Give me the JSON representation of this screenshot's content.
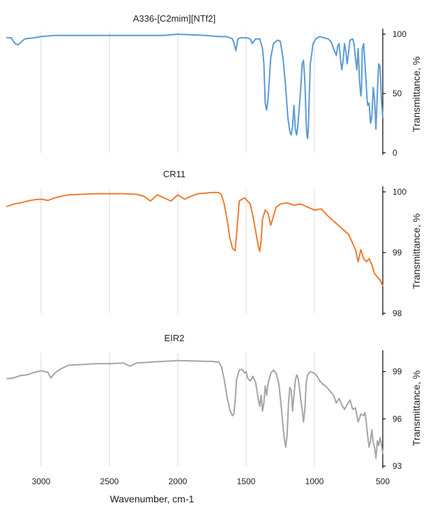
{
  "chart_data": [
    {
      "type": "line",
      "title": "A336-[C2mim][NTf2]",
      "xlabel": "",
      "ylabel": "Transmittance, %",
      "xlim": [
        3250,
        500
      ],
      "ylim": [
        0,
        100
      ],
      "y_ticks": [
        "0",
        "50",
        "100"
      ],
      "grid": true,
      "color": "#5b9bd5",
      "series": [
        {
          "x": [
            3250,
            3220,
            3190,
            3170,
            3150,
            3120,
            3050,
            3000,
            2900,
            2700,
            2500,
            2300,
            2100,
            2000,
            1800,
            1700,
            1650,
            1620,
            1600,
            1590,
            1575,
            1560,
            1540,
            1500,
            1470,
            1455,
            1430,
            1400,
            1380,
            1370,
            1360,
            1350,
            1340,
            1320,
            1300,
            1270,
            1250,
            1230,
            1210,
            1195,
            1180,
            1170,
            1160,
            1150,
            1140,
            1130,
            1120,
            1100,
            1090,
            1080,
            1070,
            1060,
            1055,
            1050,
            1045,
            1040,
            1030,
            1010,
            990,
            960,
            930,
            900,
            880,
            860,
            840,
            830,
            820,
            810,
            800,
            790,
            780,
            770,
            760,
            750,
            740,
            720,
            710,
            700,
            690,
            680,
            670,
            660,
            655,
            650,
            640,
            630,
            620,
            615,
            610,
            600,
            590,
            580,
            570,
            560,
            550,
            540,
            530,
            520,
            510,
            500
          ],
          "y": [
            97,
            97,
            92,
            91,
            93,
            96,
            97,
            98,
            99,
            99,
            99,
            99,
            99,
            100,
            99,
            98,
            98,
            97,
            96,
            93,
            86,
            96,
            97,
            97,
            96,
            92,
            96,
            96,
            88,
            75,
            42,
            36,
            45,
            80,
            92,
            95,
            94,
            80,
            55,
            30,
            18,
            15,
            22,
            40,
            20,
            15,
            25,
            55,
            75,
            78,
            60,
            25,
            15,
            12,
            20,
            40,
            75,
            92,
            96,
            98,
            97,
            96,
            94,
            88,
            82,
            90,
            92,
            80,
            70,
            78,
            92,
            85,
            75,
            85,
            95,
            96,
            92,
            80,
            70,
            88,
            60,
            48,
            55,
            88,
            92,
            75,
            55,
            45,
            40,
            42,
            25,
            30,
            55,
            45,
            20,
            50,
            75,
            73,
            45,
            30
          ]
        }
      ]
    },
    {
      "type": "line",
      "title": "CR11",
      "xlabel": "",
      "ylabel": "Transmittance, %",
      "xlim": [
        3250,
        500
      ],
      "ylim": [
        98,
        100
      ],
      "y_ticks": [
        "98",
        "99",
        "100"
      ],
      "grid": true,
      "color": "#ed7d31",
      "series": [
        {
          "x": [
            3250,
            3200,
            3150,
            3100,
            3050,
            3000,
            2950,
            2900,
            2850,
            2800,
            2700,
            2600,
            2500,
            2400,
            2300,
            2250,
            2200,
            2150,
            2100,
            2050,
            2000,
            1950,
            1900,
            1850,
            1800,
            1750,
            1700,
            1680,
            1660,
            1640,
            1620,
            1600,
            1590,
            1580,
            1570,
            1550,
            1530,
            1510,
            1490,
            1470,
            1450,
            1430,
            1410,
            1400,
            1390,
            1380,
            1360,
            1340,
            1320,
            1300,
            1280,
            1250,
            1200,
            1150,
            1100,
            1050,
            1000,
            950,
            900,
            850,
            800,
            750,
            720,
            700,
            680,
            660,
            640,
            620,
            600,
            580,
            560,
            540,
            520,
            500
          ],
          "y": [
            99.76,
            99.8,
            99.82,
            99.85,
            99.87,
            99.88,
            99.86,
            99.9,
            99.93,
            99.95,
            99.96,
            99.97,
            99.97,
            99.97,
            99.96,
            99.93,
            99.85,
            99.95,
            99.9,
            99.85,
            99.95,
            99.88,
            99.93,
            99.97,
            99.98,
            99.99,
            99.99,
            99.95,
            99.8,
            99.55,
            99.25,
            99.07,
            99.05,
            99.03,
            99.3,
            99.85,
            99.88,
            99.9,
            99.85,
            99.8,
            99.6,
            99.35,
            99.1,
            99.02,
            99.2,
            99.55,
            99.7,
            99.65,
            99.45,
            99.6,
            99.75,
            99.8,
            99.82,
            99.78,
            99.8,
            99.75,
            99.7,
            99.72,
            99.6,
            99.5,
            99.4,
            99.3,
            99.15,
            99.05,
            98.85,
            99.05,
            98.9,
            98.85,
            98.9,
            98.8,
            98.65,
            98.6,
            98.55,
            98.45
          ]
        }
      ]
    },
    {
      "type": "line",
      "title": "EIR2",
      "xlabel": "Wavenumber, cm-1",
      "ylabel": "Transmittance, %",
      "xlim": [
        3250,
        500
      ],
      "ylim": [
        93,
        100
      ],
      "y_ticks": [
        "93",
        "96",
        "99"
      ],
      "x_ticks": [
        "3000",
        "2500",
        "2000",
        "1500",
        "1000",
        "500"
      ],
      "grid": true,
      "color": "#a5a5a5",
      "series": [
        {
          "x": [
            3250,
            3200,
            3150,
            3100,
            3050,
            3000,
            2950,
            2930,
            2900,
            2870,
            2850,
            2800,
            2700,
            2600,
            2500,
            2400,
            2350,
            2300,
            2200,
            2100,
            2000,
            1900,
            1800,
            1750,
            1700,
            1680,
            1660,
            1640,
            1620,
            1600,
            1590,
            1580,
            1570,
            1550,
            1530,
            1510,
            1500,
            1490,
            1470,
            1450,
            1430,
            1410,
            1400,
            1390,
            1380,
            1370,
            1360,
            1350,
            1340,
            1320,
            1300,
            1280,
            1260,
            1240,
            1230,
            1220,
            1210,
            1200,
            1190,
            1180,
            1170,
            1160,
            1150,
            1140,
            1130,
            1120,
            1110,
            1100,
            1090,
            1080,
            1070,
            1060,
            1050,
            1040,
            1030,
            1000,
            980,
            960,
            940,
            920,
            900,
            880,
            860,
            840,
            820,
            800,
            780,
            760,
            740,
            720,
            700,
            680,
            660,
            640,
            630,
            620,
            610,
            600,
            590,
            580,
            570,
            560,
            550,
            540,
            530,
            520,
            510,
            500
          ],
          "y": [
            98.55,
            98.6,
            98.75,
            98.8,
            98.95,
            99.05,
            98.95,
            98.6,
            98.9,
            99.1,
            99.2,
            99.4,
            99.45,
            99.5,
            99.5,
            99.55,
            99.35,
            99.55,
            99.6,
            99.65,
            99.7,
            99.68,
            99.65,
            99.65,
            99.6,
            99.3,
            98.5,
            97.4,
            96.6,
            96.2,
            96.3,
            97.2,
            98.5,
            99.1,
            99.15,
            98.9,
            99.0,
            98.6,
            98.4,
            98.7,
            98.3,
            97.2,
            96.8,
            97.5,
            96.5,
            97.0,
            98.1,
            97.5,
            98.2,
            98.9,
            99.1,
            98.9,
            98.2,
            96.5,
            95.5,
            94.7,
            94.2,
            95.0,
            97.0,
            98.0,
            97.8,
            96.5,
            97.5,
            98.4,
            98.8,
            98.6,
            98.0,
            97.2,
            96.6,
            95.8,
            96.6,
            98.3,
            98.8,
            98.9,
            99.0,
            98.9,
            98.7,
            98.4,
            98.2,
            98.1,
            97.9,
            97.7,
            97.5,
            97.0,
            97.3,
            96.9,
            96.6,
            96.9,
            97.2,
            96.6,
            96.7,
            95.8,
            96.3,
            96.2,
            96.4,
            95.7,
            94.9,
            94.2,
            94.6,
            95.3,
            94.5,
            94.2,
            93.5,
            94.6,
            94.3,
            94.8,
            94.4,
            93.8
          ]
        }
      ]
    }
  ]
}
